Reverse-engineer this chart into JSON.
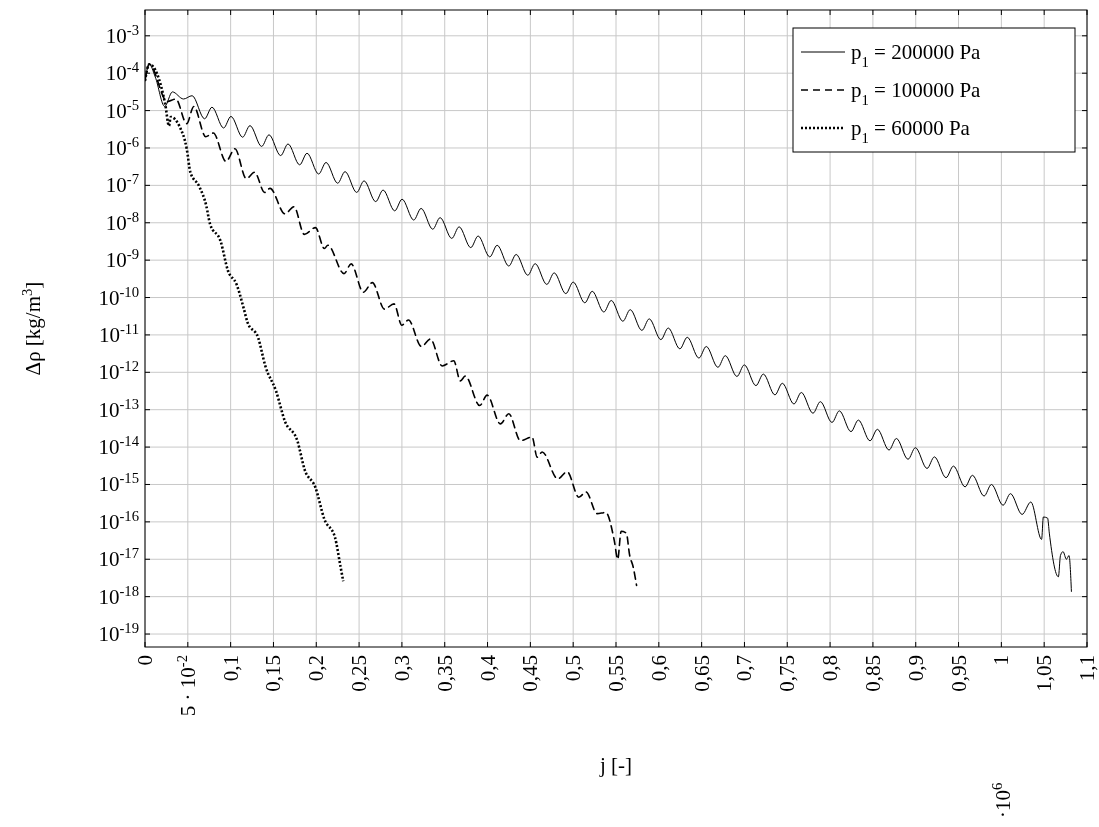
{
  "chart_data": {
    "type": "line",
    "xlabel": "j [-]",
    "ylabel": "Δρ [kg/m$^{3}$]",
    "annotations": [
      "·10$^{6}$"
    ],
    "xlim": [
      0,
      1.1
    ],
    "xticks": [
      0,
      {
        "value": 0.05,
        "label": "5 · 10$^{-2}$"
      },
      {
        "value": 0.1,
        "label": "0,1"
      },
      {
        "value": 0.15,
        "label": "0,15"
      },
      {
        "value": 0.2,
        "label": "0,2"
      },
      {
        "value": 0.25,
        "label": "0,25"
      },
      {
        "value": 0.3,
        "label": "0,3"
      },
      {
        "value": 0.35,
        "label": "0,35"
      },
      {
        "value": 0.4,
        "label": "0,4"
      },
      {
        "value": 0.45,
        "label": "0,45"
      },
      {
        "value": 0.5,
        "label": "0,5"
      },
      {
        "value": 0.55,
        "label": "0,55"
      },
      {
        "value": 0.6,
        "label": "0,6"
      },
      {
        "value": 0.65,
        "label": "0,65"
      },
      {
        "value": 0.7,
        "label": "0,7"
      },
      {
        "value": 0.75,
        "label": "0,75"
      },
      {
        "value": 0.8,
        "label": "0,8"
      },
      {
        "value": 0.85,
        "label": "0,85"
      },
      {
        "value": 0.9,
        "label": "0,9"
      },
      {
        "value": 0.95,
        "label": "0,95"
      },
      1,
      {
        "value": 1.05,
        "label": "1,05"
      },
      {
        "value": 1.1,
        "label": "1,1"
      }
    ],
    "ylim": [
      4.5e-20,
      0.0049
    ],
    "yticks": [
      {
        "value": 1e-19,
        "label": "10$^{-19}$"
      },
      {
        "value": 1e-18,
        "label": "10$^{-18}$"
      },
      {
        "value": 1e-17,
        "label": "10$^{-17}$"
      },
      {
        "value": 1e-16,
        "label": "10$^{-16}$"
      },
      {
        "value": 1e-15,
        "label": "10$^{-15}$"
      },
      {
        "value": 1e-14,
        "label": "10$^{-14}$"
      },
      {
        "value": 1e-13,
        "label": "10$^{-13}$"
      },
      {
        "value": 1e-12,
        "label": "10$^{-12}$"
      },
      {
        "value": 1e-11,
        "label": "10$^{-11}$"
      },
      {
        "value": 1e-10,
        "label": "10$^{-10}$"
      },
      {
        "value": 1e-09,
        "label": "10$^{-9}$"
      },
      {
        "value": 1e-08,
        "label": "10$^{-8}$"
      },
      {
        "value": 1e-07,
        "label": "10$^{-7}$"
      },
      {
        "value": 1e-06,
        "label": "10$^{-6}$"
      },
      {
        "value": 1e-05,
        "label": "10$^{-5}$"
      },
      {
        "value": 0.0001,
        "label": "10$^{-4}$"
      },
      {
        "value": 0.001,
        "label": "10$^{-3}$"
      }
    ],
    "log": "y",
    "grid": true,
    "legend": "top right",
    "series": [
      {
        "name": "p$_{1}$ = 200000 Pa",
        "color": "#000000",
        "line_style": "solid",
        "x": [
          0,
          0.005,
          0.012,
          0.023,
          0.032,
          0.045,
          0.055,
          0.0696,
          0.0782,
          0.0918,
          0.1004,
          0.114,
          0.1226,
          0.1362,
          0.1448,
          0.1584,
          0.167,
          0.1806,
          0.1892,
          0.2028,
          0.2114,
          0.225,
          0.2336,
          0.2472,
          0.2558,
          0.2694,
          0.278,
          0.2916,
          0.3002,
          0.3138,
          0.3224,
          0.336,
          0.3446,
          0.3582,
          0.3668,
          0.3804,
          0.389,
          0.4026,
          0.4112,
          0.4248,
          0.4334,
          0.447,
          0.4556,
          0.4692,
          0.4778,
          0.4914,
          0.5,
          0.5136,
          0.5222,
          0.5358,
          0.5444,
          0.558,
          0.5666,
          0.5802,
          0.5888,
          0.6024,
          0.611,
          0.6246,
          0.6332,
          0.6468,
          0.6554,
          0.669,
          0.6776,
          0.6912,
          0.6998,
          0.7134,
          0.722,
          0.7356,
          0.7442,
          0.7578,
          0.7664,
          0.78,
          0.7886,
          0.8022,
          0.8108,
          0.8244,
          0.833,
          0.8466,
          0.8552,
          0.8688,
          0.8774,
          0.891,
          0.8996,
          0.9132,
          0.9218,
          0.9354,
          0.944,
          0.9576,
          0.9662,
          0.9798,
          0.9884,
          1.002,
          1.0106,
          1.0242,
          1.0344,
          1.047,
          1.049,
          1.054,
          1.056,
          1.0666,
          1.069,
          1.072,
          1.076,
          1.079,
          1.0818
        ],
        "values": [
          6.31e-05,
          0.000174,
          7.9e-05,
          1.29e-05,
          3.16e-05,
          2.04e-05,
          2.5e-05,
          6.03e-06,
          1.23e-05,
          3.42e-06,
          6.98e-06,
          1.94e-06,
          3.96e-06,
          1.1e-06,
          2.25e-06,
          6.25e-07,
          1.28e-06,
          3.54e-07,
          7.23e-07,
          2.01e-07,
          4.1e-07,
          1.14e-07,
          2.33e-07,
          6.47e-08,
          1.32e-07,
          3.67e-08,
          7.5e-08,
          2.08e-08,
          4.26e-08,
          1.18e-08,
          2.42e-08,
          6.71e-09,
          1.37e-08,
          3.81e-09,
          7.78e-09,
          2.16e-09,
          4.42e-09,
          1.22e-09,
          2.5e-09,
          6.95e-10,
          1.42e-09,
          3.94e-10,
          8.05e-10,
          2.24e-10,
          4.57e-10,
          1.27e-10,
          2.59e-10,
          7.21e-11,
          1.47e-10,
          4.09e-11,
          8.36e-11,
          2.32e-11,
          4.74e-11,
          1.32e-11,
          2.69e-11,
          7.48e-12,
          1.53e-11,
          4.24e-12,
          8.65e-12,
          2.4e-12,
          4.91e-12,
          1.36e-12,
          2.79e-12,
          7.74e-13,
          1.58e-12,
          4.4e-13,
          8.97e-13,
          2.49e-13,
          5.09e-13,
          1.42e-13,
          2.89e-13,
          8.04e-14,
          1.64e-13,
          4.56e-14,
          9.31e-14,
          2.59e-14,
          5.28e-14,
          1.47e-14,
          2.99e-14,
          8.32e-15,
          1.7e-14,
          4.72e-15,
          9.64e-15,
          2.68e-15,
          5.47e-15,
          1.52e-15,
          3.1e-15,
          8.63e-16,
          1.76e-15,
          4.9e-16,
          1e-15,
          2.78e-16,
          5.68e-16,
          1.58e-16,
          3.4e-16,
          3.4e-17,
          1.35e-16,
          1.26e-16,
          5e-17,
          3.4e-18,
          1.26e-17,
          1.6e-17,
          1e-17,
          1.26e-17,
          1.38e-18
        ]
      },
      {
        "name": "p$_{1}$ = 100000 Pa",
        "color": "#000000",
        "line_style": "dashed",
        "x": [
          0,
          0.005,
          0.026,
          0.036,
          0.0487,
          0.057,
          0.0709,
          0.0798,
          0.0946,
          0.105,
          0.1183,
          0.128,
          0.1397,
          0.146,
          0.1634,
          0.174,
          0.186,
          0.199,
          0.2095,
          0.2135,
          0.2324,
          0.2407,
          0.255,
          0.2655,
          0.2796,
          0.2908,
          0.2999,
          0.3076,
          0.3228,
          0.3333,
          0.347,
          0.3605,
          0.3683,
          0.374,
          0.3909,
          0.3995,
          0.415,
          0.4248,
          0.4384,
          0.452,
          0.458,
          0.4638,
          0.482,
          0.493,
          0.5066,
          0.515,
          0.528,
          0.538,
          0.548,
          0.552,
          0.556,
          0.562,
          0.566,
          0.57,
          0.574
        ],
        "values": [
          6.31e-05,
          0.000174,
          1.74e-05,
          2.04e-05,
          4.47e-06,
          1.29e-05,
          2e-06,
          2.51e-06,
          4.37e-07,
          9.55e-07,
          1.51e-07,
          2.24e-07,
          6.46e-08,
          8.32e-08,
          1.74e-08,
          2.69e-08,
          4.9e-09,
          7.41e-09,
          2.04e-09,
          2.51e-09,
          4.37e-10,
          7.94e-10,
          1.38e-10,
          2.51e-10,
          4.9e-11,
          6.76e-11,
          1.82e-11,
          2.51e-11,
          4.9e-12,
          7.76e-12,
          1.48e-12,
          2.04e-12,
          5.89e-13,
          7.94e-13,
          1.29e-13,
          2.45e-13,
          4.17e-14,
          7.76e-14,
          1.48e-14,
          1.86e-14,
          5.37e-15,
          7.41e-15,
          1.41e-15,
          2.19e-15,
          4.57e-16,
          6.31e-16,
          1.66e-16,
          1.78e-16,
          3.16e-17,
          1e-17,
          5.62e-17,
          5.01e-17,
          1.26e-17,
          6.31e-18,
          2e-18
        ]
      },
      {
        "name": "p$_{1}$ = 60000 Pa",
        "color": "#000000",
        "line_style": "dotted",
        "x": [
          0,
          0.005,
          0.0237,
          0.028,
          0.03,
          0.04,
          0.0487,
          0.053,
          0.0634,
          0.0716,
          0.0758,
          0.0884,
          0.0967,
          0.107,
          0.1155,
          0.1195,
          0.1322,
          0.1405,
          0.153,
          0.1634,
          0.1779,
          0.1864,
          0.199,
          0.2095,
          0.2218,
          0.2281,
          0.2315
        ],
        "values": [
          6.31e-05,
          0.000174,
          1.45e-05,
          3.89e-06,
          6.76e-06,
          3.89e-06,
          9.55e-07,
          2.24e-07,
          9.33e-08,
          2.82e-08,
          9.55e-09,
          3.16e-09,
          5.37e-10,
          2.24e-10,
          4.9e-11,
          2.24e-11,
          8.32e-12,
          1.48e-12,
          3.16e-13,
          4.9e-14,
          1.48e-14,
          2.51e-15,
          8.32e-16,
          1.17e-16,
          3.89e-17,
          6.76e-18,
          2.57e-18
        ]
      }
    ]
  }
}
